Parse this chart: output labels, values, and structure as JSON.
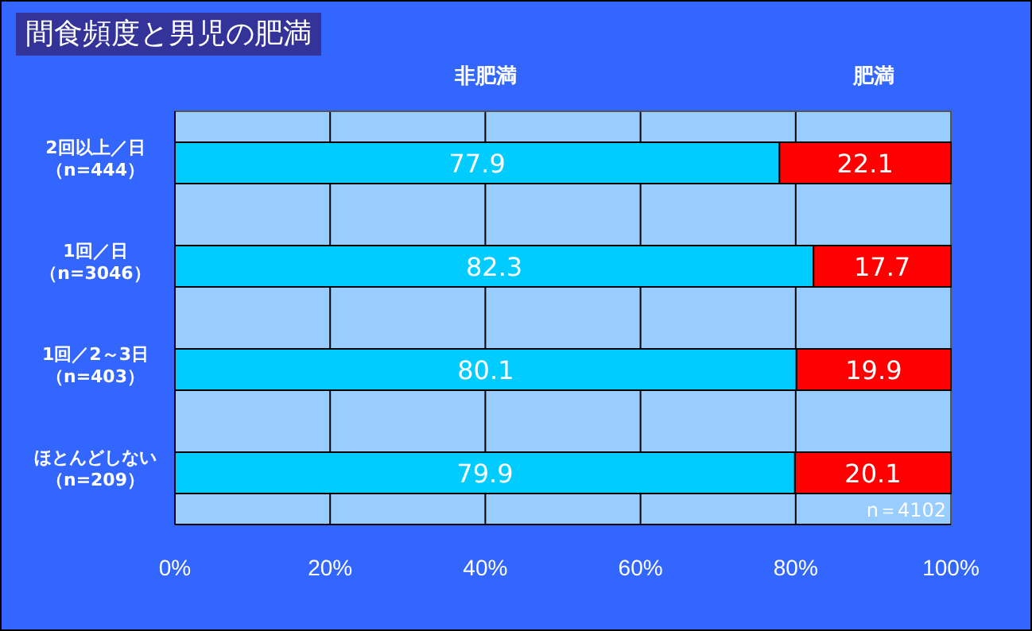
{
  "chart_data": {
    "type": "bar",
    "orientation": "horizontal",
    "stacked": true,
    "title": "間食頻度と男児の肥満",
    "categories": [
      "2回以上／日（n=444）",
      "1回／日（n=3046）",
      "1回／2～3日（n=403）",
      "ほとんどしない（n=209）"
    ],
    "series": [
      {
        "name": "非肥満",
        "color": "#00ccff",
        "values": [
          77.9,
          82.3,
          80.1,
          79.9
        ]
      },
      {
        "name": "肥満",
        "color": "#ff0000",
        "values": [
          22.1,
          17.7,
          19.9,
          20.1
        ]
      }
    ],
    "xlim": [
      0,
      100
    ],
    "xticks": [
      {
        "value": 0,
        "label": "0%"
      },
      {
        "value": 20,
        "label": "20%"
      },
      {
        "value": 40,
        "label": "40%"
      },
      {
        "value": 60,
        "label": "60%"
      },
      {
        "value": 80,
        "label": "80%"
      },
      {
        "value": 100,
        "label": "100%"
      }
    ],
    "grid": "x",
    "legend": "top",
    "data_labels": true,
    "annotations": [
      "n＝4102"
    ]
  }
}
